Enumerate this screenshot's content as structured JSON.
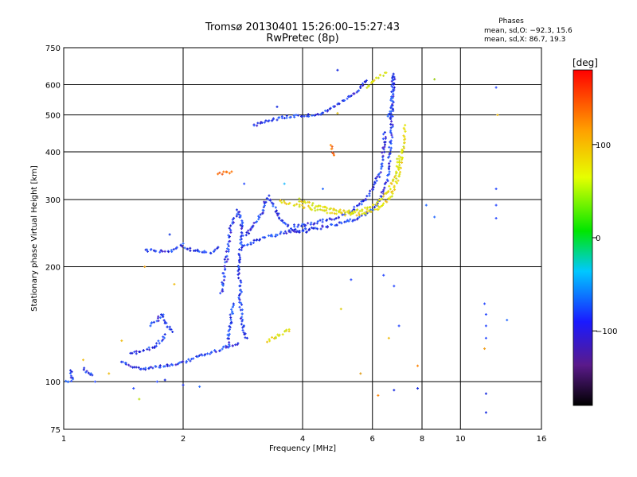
{
  "chart_data": {
    "type": "scatter",
    "title": "Tromsø 20130401 15:26:00–15:27:43",
    "subtitle": "RwPretec (8p)",
    "xlabel": "Frequency [MHz]",
    "ylabel": "Stationary phase Virtual Height [km]",
    "x_scale": "log",
    "y_scale": "log",
    "xlim": [
      1,
      16
    ],
    "ylim": [
      75,
      750
    ],
    "x_ticks": [
      1,
      2,
      4,
      6,
      8,
      10,
      16
    ],
    "y_ticks": [
      75,
      100,
      200,
      300,
      400,
      500,
      600,
      750
    ],
    "x_grid": [
      1,
      2,
      4,
      6,
      8,
      10,
      16
    ],
    "y_grid": [
      100,
      200,
      300,
      400,
      500,
      600
    ],
    "grid": true,
    "stats": {
      "header": "Phases",
      "line_o": "mean, sd,O: −92.3, 15.6",
      "line_x": "mean, sd,X:  86.7, 19.3"
    },
    "colorbar": {
      "label": "[deg]",
      "range": [
        -180,
        180
      ],
      "tick_labels": [
        "100",
        "0",
        "−100"
      ],
      "tick_values": [
        100,
        0,
        -100
      ]
    },
    "series": [
      {
        "mode": "O",
        "phase_deg": -92,
        "color": "#2a3ee6",
        "segments": [
          [
            [
              1.01,
              100
            ],
            [
              1.05,
              101
            ],
            [
              1.04,
              107
            ]
          ],
          [
            [
              1.12,
              108
            ],
            [
              1.15,
              105
            ],
            [
              1.18,
              104
            ]
          ],
          [
            [
              1.4,
              113
            ],
            [
              1.46,
              110
            ],
            [
              1.55,
              108
            ],
            [
              1.65,
              109
            ],
            [
              1.8,
              110
            ],
            [
              1.95,
              111
            ],
            [
              2.05,
              113
            ],
            [
              2.15,
              116
            ],
            [
              2.3,
              118
            ],
            [
              2.45,
              121
            ],
            [
              2.6,
              124
            ],
            [
              2.75,
              126
            ]
          ],
          [
            [
              1.48,
              118
            ],
            [
              1.55,
              120
            ],
            [
              1.6,
              121
            ],
            [
              1.68,
              123
            ],
            [
              1.72,
              125
            ],
            [
              1.76,
              128
            ],
            [
              1.8,
              133
            ]
          ],
          [
            [
              1.65,
              140
            ],
            [
              1.72,
              145
            ],
            [
              1.78,
              150
            ],
            [
              1.82,
              140
            ],
            [
              1.88,
              135
            ]
          ],
          [
            [
              1.6,
              220
            ],
            [
              1.65,
              221
            ],
            [
              1.72,
              220
            ],
            [
              1.8,
              219
            ],
            [
              1.9,
              222
            ],
            [
              1.96,
              227
            ],
            [
              2.02,
              225
            ],
            [
              2.1,
              222
            ],
            [
              2.2,
              219
            ],
            [
              2.3,
              217
            ],
            [
              2.38,
              219
            ],
            [
              2.45,
              225
            ]
          ],
          [
            [
              2.5,
              170
            ],
            [
              2.52,
              185
            ],
            [
              2.55,
              200
            ],
            [
              2.58,
              215
            ],
            [
              2.6,
              230
            ],
            [
              2.62,
              245
            ],
            [
              2.65,
              260
            ],
            [
              2.7,
              270
            ],
            [
              2.75,
              280
            ],
            [
              2.8,
              268
            ],
            [
              2.82,
              250
            ],
            [
              2.8,
              232
            ],
            [
              2.78,
              215
            ],
            [
              2.76,
              200
            ],
            [
              2.78,
              185
            ],
            [
              2.8,
              175
            ],
            [
              2.78,
              165
            ],
            [
              2.8,
              155
            ],
            [
              2.82,
              145
            ],
            [
              2.85,
              135
            ],
            [
              2.9,
              130
            ]
          ],
          [
            [
              2.58,
              122
            ],
            [
              2.6,
              130
            ],
            [
              2.62,
              140
            ],
            [
              2.65,
              150
            ],
            [
              2.68,
              160
            ]
          ],
          [
            [
              2.85,
              240
            ],
            [
              2.95,
              250
            ],
            [
              3.05,
              262
            ],
            [
              3.15,
              275
            ],
            [
              3.2,
              292
            ],
            [
              3.3,
              305
            ],
            [
              3.4,
              285
            ],
            [
              3.5,
              270
            ],
            [
              3.6,
              260
            ],
            [
              3.75,
              252
            ],
            [
              3.9,
              248
            ],
            [
              4.1,
              247
            ]
          ],
          [
            [
              2.85,
              225
            ],
            [
              3.0,
              232
            ],
            [
              3.2,
              238
            ],
            [
              3.4,
              242
            ],
            [
              3.6,
              246
            ],
            [
              3.8,
              248
            ],
            [
              4.0,
              249
            ],
            [
              4.3,
              252
            ],
            [
              4.6,
              255
            ],
            [
              4.9,
              259
            ],
            [
              5.2,
              263
            ],
            [
              5.5,
              268
            ],
            [
              5.8,
              276
            ],
            [
              6.1,
              288
            ],
            [
              6.3,
              305
            ],
            [
              6.5,
              330
            ],
            [
              6.6,
              360
            ],
            [
              6.65,
              400
            ],
            [
              6.7,
              450
            ],
            [
              6.72,
              500
            ],
            [
              6.74,
              550
            ],
            [
              6.75,
              600
            ],
            [
              6.73,
              625
            ]
          ],
          [
            [
              3.8,
              256
            ],
            [
              4.1,
              258
            ],
            [
              4.4,
              262
            ],
            [
              4.7,
              266
            ],
            [
              5.0,
              272
            ],
            [
              5.3,
              280
            ],
            [
              5.6,
              292
            ],
            [
              5.9,
              308
            ],
            [
              6.1,
              330
            ],
            [
              6.3,
              360
            ],
            [
              6.4,
              400
            ],
            [
              6.45,
              450
            ]
          ],
          [
            [
              3.0,
              468
            ],
            [
              3.2,
              478
            ],
            [
              3.4,
              488
            ],
            [
              3.6,
              494
            ],
            [
              3.8,
              496
            ],
            [
              4.0,
              497
            ],
            [
              4.3,
              500
            ],
            [
              4.6,
              510
            ],
            [
              4.9,
              530
            ],
            [
              5.2,
              555
            ],
            [
              5.5,
              580
            ],
            [
              5.7,
              600
            ],
            [
              5.8,
              615
            ]
          ],
          [
            [
              6.6,
              490
            ],
            [
              6.7,
              530
            ],
            [
              6.75,
              570
            ],
            [
              6.8,
              600
            ],
            [
              6.78,
              640
            ]
          ]
        ]
      },
      {
        "mode": "X",
        "phase_deg": 87,
        "color": "#e6e61a",
        "segments": [
          [
            [
              3.5,
              298
            ],
            [
              3.7,
              293
            ],
            [
              3.9,
              289
            ],
            [
              4.2,
              285
            ],
            [
              4.5,
              280
            ],
            [
              4.8,
              277
            ],
            [
              5.1,
              275
            ],
            [
              5.4,
              274
            ],
            [
              5.7,
              276
            ],
            [
              6.0,
              280
            ],
            [
              6.3,
              288
            ],
            [
              6.6,
              300
            ],
            [
              6.8,
              320
            ],
            [
              7.0,
              350
            ],
            [
              7.1,
              390
            ],
            [
              7.2,
              430
            ],
            [
              7.25,
              470
            ]
          ],
          [
            [
              3.9,
              300
            ],
            [
              4.3,
              290
            ],
            [
              4.8,
              283
            ],
            [
              5.3,
              279
            ],
            [
              5.8,
              284
            ],
            [
              6.2,
              296
            ],
            [
              6.6,
              318
            ],
            [
              6.9,
              350
            ],
            [
              7.0,
              390
            ]
          ],
          [
            [
              3.25,
              128
            ],
            [
              3.4,
              131
            ],
            [
              3.55,
              134
            ],
            [
              3.7,
              137
            ]
          ],
          [
            [
              5.8,
              592
            ],
            [
              6.0,
              612
            ],
            [
              6.2,
              628
            ],
            [
              6.5,
              645
            ]
          ]
        ]
      },
      {
        "mode": "mixed",
        "phase_deg": 140,
        "color": "#ff7a10",
        "segments": [
          [
            [
              4.7,
              418
            ],
            [
              4.8,
              392
            ]
          ],
          [
            [
              2.45,
              350
            ],
            [
              2.65,
              355
            ]
          ]
        ]
      }
    ],
    "scattered_points": [
      {
        "x": 1.6,
        "y": 200,
        "c": "#e6a020"
      },
      {
        "x": 1.85,
        "y": 243,
        "c": "#1a3fe0"
      },
      {
        "x": 2.0,
        "y": 230,
        "c": "#3070ff"
      },
      {
        "x": 1.9,
        "y": 180,
        "c": "#f0c020"
      },
      {
        "x": 2.85,
        "y": 330,
        "c": "#3355ff"
      },
      {
        "x": 3.6,
        "y": 330,
        "c": "#30c0ff"
      },
      {
        "x": 4.9,
        "y": 655,
        "c": "#1a2ee0"
      },
      {
        "x": 5.0,
        "y": 155,
        "c": "#e0d020"
      },
      {
        "x": 5.6,
        "y": 105,
        "c": "#e0a020"
      },
      {
        "x": 6.2,
        "y": 92,
        "c": "#ff8a10"
      },
      {
        "x": 5.3,
        "y": 185,
        "c": "#3050ff"
      },
      {
        "x": 6.4,
        "y": 190,
        "c": "#3050ff"
      },
      {
        "x": 6.8,
        "y": 178,
        "c": "#3050ff"
      },
      {
        "x": 6.6,
        "y": 130,
        "c": "#f0c020"
      },
      {
        "x": 7.0,
        "y": 140,
        "c": "#3050ff"
      },
      {
        "x": 7.8,
        "y": 110,
        "c": "#ff8a10"
      },
      {
        "x": 6.8,
        "y": 95,
        "c": "#1a2ee0"
      },
      {
        "x": 7.8,
        "y": 96,
        "c": "#1a2ee0"
      },
      {
        "x": 8.2,
        "y": 290,
        "c": "#3070ff"
      },
      {
        "x": 8.6,
        "y": 270,
        "c": "#3070ff"
      },
      {
        "x": 8.6,
        "y": 620,
        "c": "#a0d020"
      },
      {
        "x": 11.5,
        "y": 160,
        "c": "#3050ff"
      },
      {
        "x": 11.6,
        "y": 150,
        "c": "#3050ff"
      },
      {
        "x": 11.6,
        "y": 140,
        "c": "#3050ff"
      },
      {
        "x": 11.6,
        "y": 130,
        "c": "#3050ff"
      },
      {
        "x": 11.5,
        "y": 122,
        "c": "#f0a020"
      },
      {
        "x": 11.6,
        "y": 93,
        "c": "#1a2ee0"
      },
      {
        "x": 11.6,
        "y": 83,
        "c": "#1a2ee0"
      },
      {
        "x": 12.3,
        "y": 320,
        "c": "#3050ff"
      },
      {
        "x": 12.3,
        "y": 290,
        "c": "#3050ff"
      },
      {
        "x": 12.3,
        "y": 268,
        "c": "#3050ff"
      },
      {
        "x": 12.3,
        "y": 590,
        "c": "#3050ff"
      },
      {
        "x": 12.4,
        "y": 500,
        "c": "#f0c020"
      },
      {
        "x": 13.1,
        "y": 145,
        "c": "#3070ff"
      },
      {
        "x": 1.4,
        "y": 128,
        "c": "#f0c020"
      },
      {
        "x": 1.3,
        "y": 105,
        "c": "#f0c020"
      },
      {
        "x": 1.55,
        "y": 90,
        "c": "#c0e020"
      },
      {
        "x": 1.2,
        "y": 100,
        "c": "#3050ff"
      },
      {
        "x": 1.8,
        "y": 101,
        "c": "#1a2ee0"
      },
      {
        "x": 2.0,
        "y": 98,
        "c": "#1a2ee0"
      },
      {
        "x": 2.2,
        "y": 97,
        "c": "#3070ff"
      },
      {
        "x": 1.12,
        "y": 114,
        "c": "#f0c020"
      },
      {
        "x": 3.45,
        "y": 525,
        "c": "#1a2ee0"
      },
      {
        "x": 4.5,
        "y": 320,
        "c": "#3070ff"
      },
      {
        "x": 4.9,
        "y": 505,
        "c": "#e0c020"
      },
      {
        "x": 1.72,
        "y": 100,
        "c": "#3050ff"
      },
      {
        "x": 1.5,
        "y": 96,
        "c": "#3050ff"
      }
    ]
  }
}
